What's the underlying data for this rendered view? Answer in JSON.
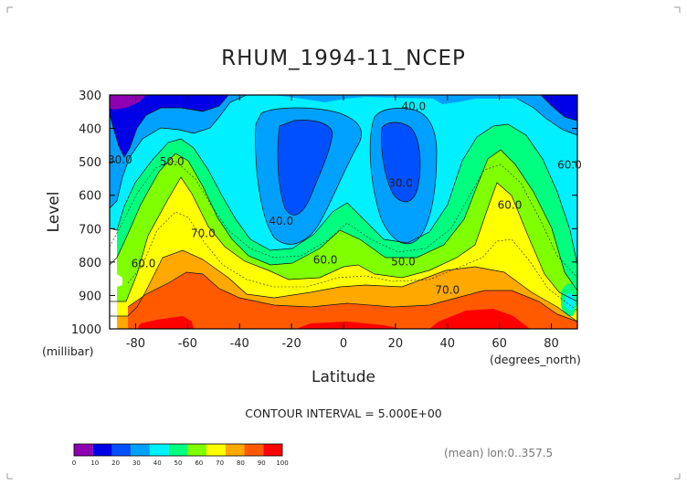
{
  "chart_data": {
    "type": "contour",
    "title": "RHUM_1994-11_NCEP",
    "xlabel": "Latitude",
    "ylabel": "Level",
    "x_units": "(degrees_north)",
    "y_units": "(millibar)",
    "xlim": [
      -90,
      90
    ],
    "ylim": [
      1000,
      300
    ],
    "x_ticks": [
      -80,
      -60,
      -40,
      -20,
      0,
      20,
      40,
      60,
      80
    ],
    "x_tick_labels": [
      "-80",
      "-60",
      "-40",
      "-20",
      "0",
      "20",
      "40",
      "60",
      "80"
    ],
    "y_ticks": [
      300,
      400,
      500,
      600,
      700,
      800,
      900,
      1000
    ],
    "y_tick_labels": [
      "300",
      "400",
      "500",
      "600",
      "700",
      "800",
      "900",
      "1000"
    ],
    "contour_interval_text": "CONTOUR INTERVAL = 5.000E+00",
    "note": "(mean) lon:0..357.5",
    "levels": [
      0,
      10,
      20,
      30,
      40,
      50,
      60,
      70,
      80,
      90,
      100
    ],
    "level_labels": [
      "0",
      "10",
      "20",
      "30",
      "40",
      "50",
      "60",
      "70",
      "80",
      "90",
      "100"
    ],
    "colors": [
      "#8e00b0",
      "#0000e6",
      "#0050ff",
      "#00a0ff",
      "#00f0ff",
      "#00ff7f",
      "#7fff00",
      "#ffff00",
      "#ffa800",
      "#ff5a00",
      "#ff0000"
    ],
    "contour_labels": [
      {
        "text": "40.0",
        "lat": 27,
        "level": 345
      },
      {
        "text": "50.0",
        "lat": -66,
        "level": 510
      },
      {
        "text": "30.0",
        "lat": -86,
        "level": 505
      },
      {
        "text": "60.0",
        "lat": 87,
        "level": 520
      },
      {
        "text": "30.0",
        "lat": 22,
        "level": 575
      },
      {
        "text": "40.0",
        "lat": -24,
        "level": 688
      },
      {
        "text": "70.0",
        "lat": -54,
        "level": 725
      },
      {
        "text": "60.0",
        "lat": 64,
        "level": 640
      },
      {
        "text": "60.0",
        "lat": -77,
        "level": 815
      },
      {
        "text": "60.0",
        "lat": -7,
        "level": 805
      },
      {
        "text": "50.0",
        "lat": 23,
        "level": 810
      },
      {
        "text": "70.0",
        "lat": 40,
        "level": 895
      }
    ],
    "grid": false,
    "legend": "bottom"
  }
}
